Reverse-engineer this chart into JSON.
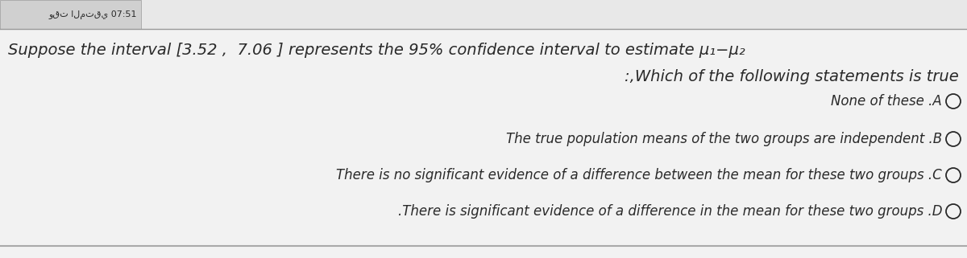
{
  "bg_color": "#e8e8e8",
  "main_bg": "#f0f0f0",
  "header_box_color": "#d0d0d0",
  "header_text": "وقت المتقي 07:51",
  "question_line1": "Suppose the interval [3.52 ,  7.06 ] represents the 95% confidence interval to estimate μ₁−μ₂",
  "question_line2": ":,Which of the following statements is true",
  "option_a_text": "None of these .A",
  "option_b_text": "The true population means of the two groups are independent .B",
  "option_c_text": "There is no significant evidence of a difference between the mean for these two groups .C",
  "option_d_text": ".There is significant evidence of a difference in the mean for these two groups .D",
  "text_color": "#2a2a2a",
  "font_size_question": 14,
  "font_size_options": 12,
  "font_size_header": 8,
  "circle_color": "#2a2a2a",
  "line_color": "#aaaaaa",
  "top_line_color": "#999999"
}
